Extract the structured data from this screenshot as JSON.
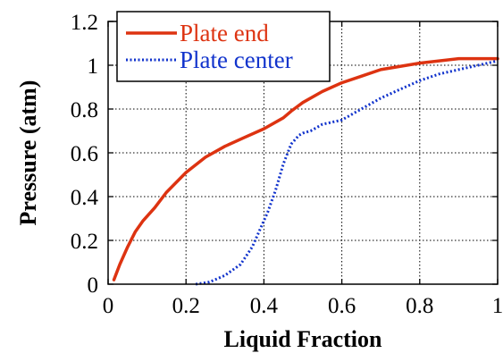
{
  "chart_data": {
    "type": "line",
    "xlabel": "Liquid Fraction",
    "ylabel": "Pressure (atm)",
    "xlim": [
      0,
      1
    ],
    "ylim": [
      0,
      1.2
    ],
    "xticks": [
      {
        "value": 0,
        "label": "0"
      },
      {
        "value": 0.2,
        "label": "0.2"
      },
      {
        "value": 0.4,
        "label": "0.4"
      },
      {
        "value": 0.6,
        "label": "0.6"
      },
      {
        "value": 0.8,
        "label": "0.8"
      },
      {
        "value": 1,
        "label": "1"
      }
    ],
    "yticks": [
      {
        "value": 0,
        "label": "0"
      },
      {
        "value": 0.2,
        "label": "0.2"
      },
      {
        "value": 0.4,
        "label": "0.4"
      },
      {
        "value": 0.6,
        "label": "0.6"
      },
      {
        "value": 0.8,
        "label": "0.8"
      },
      {
        "value": 1,
        "label": "1"
      },
      {
        "value": 1.2,
        "label": "1.2"
      }
    ],
    "grid": true,
    "legend_position": "top-left",
    "series": [
      {
        "name": "Plate end",
        "color": "#dd3311",
        "style": "solid",
        "points": [
          [
            0.015,
            0.02
          ],
          [
            0.03,
            0.09
          ],
          [
            0.05,
            0.17
          ],
          [
            0.07,
            0.24
          ],
          [
            0.09,
            0.29
          ],
          [
            0.12,
            0.35
          ],
          [
            0.15,
            0.42
          ],
          [
            0.2,
            0.51
          ],
          [
            0.25,
            0.58
          ],
          [
            0.3,
            0.63
          ],
          [
            0.35,
            0.67
          ],
          [
            0.4,
            0.71
          ],
          [
            0.45,
            0.76
          ],
          [
            0.47,
            0.79
          ],
          [
            0.5,
            0.83
          ],
          [
            0.55,
            0.88
          ],
          [
            0.6,
            0.92
          ],
          [
            0.65,
            0.95
          ],
          [
            0.7,
            0.98
          ],
          [
            0.8,
            1.01
          ],
          [
            0.9,
            1.03
          ],
          [
            1.0,
            1.03
          ]
        ]
      },
      {
        "name": "Plate center",
        "color": "#1133cc",
        "style": "dotted",
        "points": [
          [
            0.225,
            0.0
          ],
          [
            0.26,
            0.01
          ],
          [
            0.3,
            0.04
          ],
          [
            0.34,
            0.09
          ],
          [
            0.37,
            0.17
          ],
          [
            0.39,
            0.25
          ],
          [
            0.41,
            0.33
          ],
          [
            0.43,
            0.43
          ],
          [
            0.45,
            0.55
          ],
          [
            0.47,
            0.64
          ],
          [
            0.49,
            0.68
          ],
          [
            0.5,
            0.69
          ],
          [
            0.52,
            0.7
          ],
          [
            0.55,
            0.73
          ],
          [
            0.6,
            0.75
          ],
          [
            0.65,
            0.8
          ],
          [
            0.7,
            0.85
          ],
          [
            0.75,
            0.89
          ],
          [
            0.8,
            0.93
          ],
          [
            0.85,
            0.96
          ],
          [
            0.9,
            0.98
          ],
          [
            0.95,
            1.0
          ],
          [
            1.0,
            1.02
          ]
        ]
      }
    ]
  }
}
